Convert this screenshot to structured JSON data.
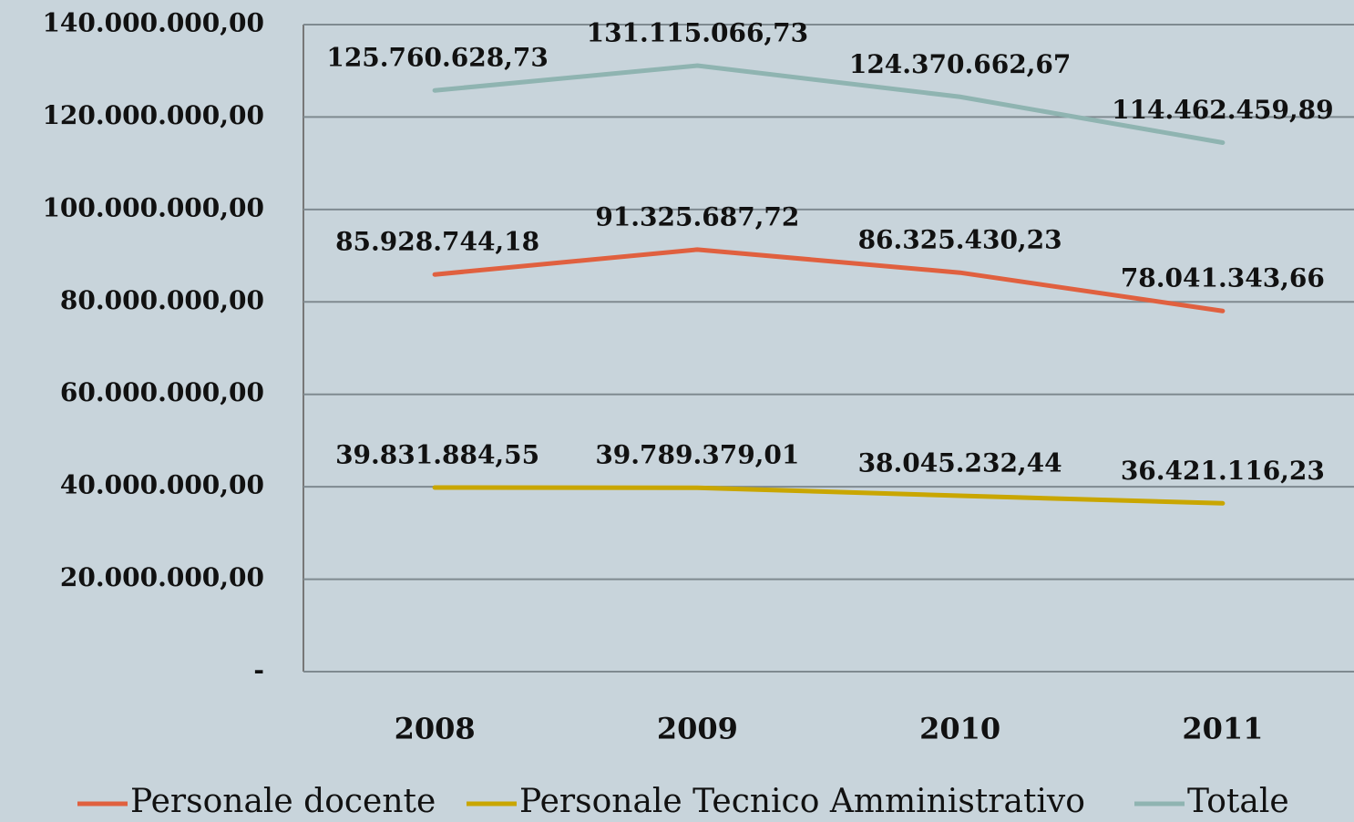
{
  "chart_data": {
    "type": "line",
    "categories": [
      "2008",
      "2009",
      "2010",
      "2011"
    ],
    "series": [
      {
        "name": "Personale docente",
        "color": "#e0603f",
        "values": [
          85928744.18,
          91325687.72,
          86325430.23,
          78041343.66
        ],
        "value_labels": [
          "85.928.744,18",
          "91.325.687,72",
          "86.325.430,23",
          "78.041.343,66"
        ]
      },
      {
        "name": "Personale Tecnico Amministrativo",
        "color": "#c9a600",
        "values": [
          39831884.55,
          39789379.01,
          38045232.44,
          36421116.23
        ],
        "value_labels": [
          "39.831.884,55",
          "39.789.379,01",
          "38.045.232,44",
          "36.421.116,23"
        ]
      },
      {
        "name": "Totale",
        "color": "#8fb4b1",
        "values": [
          125760628.73,
          131115066.73,
          124370662.67,
          114462459.89
        ],
        "value_labels": [
          "125.760.628,73",
          "131.115.066,73",
          "124.370.662,67",
          "114.462.459,89"
        ]
      }
    ],
    "ylim": [
      0,
      140000000
    ],
    "yticks": [
      {
        "value": 0,
        "label": "-"
      },
      {
        "value": 20000000,
        "label": "20.000.000,00"
      },
      {
        "value": 40000000,
        "label": "40.000.000,00"
      },
      {
        "value": 60000000,
        "label": "60.000.000,00"
      },
      {
        "value": 80000000,
        "label": "80.000.000,00"
      },
      {
        "value": 100000000,
        "label": "100.000.000,00"
      },
      {
        "value": 120000000,
        "label": "120.000.000,00"
      },
      {
        "value": 140000000,
        "label": "140.000.000,00"
      }
    ],
    "grid": true,
    "legend": "bottom"
  }
}
